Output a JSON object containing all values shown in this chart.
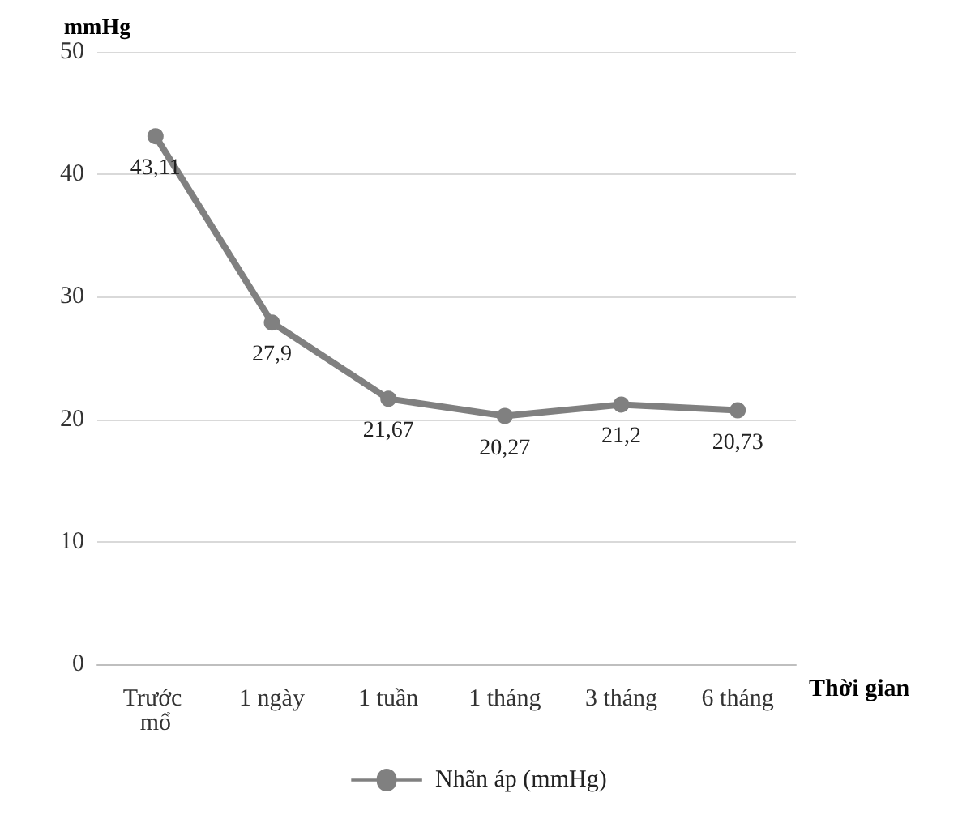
{
  "chart_data": {
    "type": "line",
    "ylabel": "mmHg",
    "xlabel": "Thời gian",
    "categories": [
      "Trước mổ",
      "1 ngày",
      "1 tuần",
      "1 tháng",
      "3 tháng",
      "6 tháng"
    ],
    "series": [
      {
        "name": "Nhãn áp (mmHg)",
        "color": "#808080",
        "values": [
          43.11,
          27.9,
          21.67,
          20.27,
          21.2,
          20.73
        ],
        "value_labels": [
          "43,11",
          "27,9",
          "21,67",
          "20,27",
          "21,2",
          "20,73"
        ]
      }
    ],
    "ylim": [
      0,
      50
    ],
    "yticks": [
      0,
      10,
      20,
      30,
      40,
      50
    ],
    "grid": "y",
    "legend": "bottom",
    "marker": "circle",
    "line_style": "solid"
  }
}
